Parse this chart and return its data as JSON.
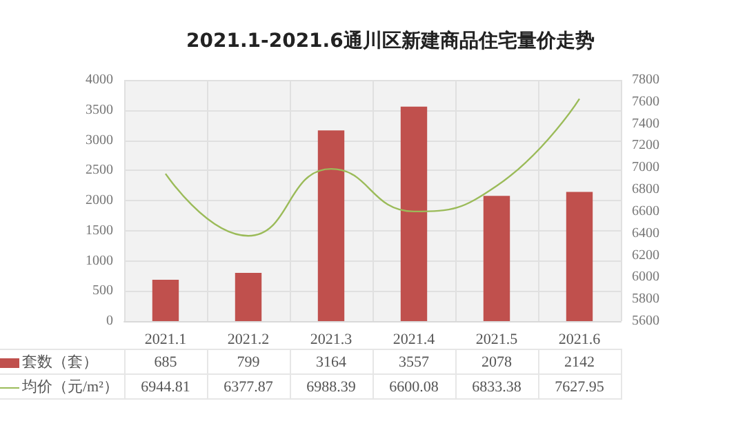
{
  "chart_data": {
    "type": "bar",
    "title": "2021.1-2021.6通川区新建商品住宅量价走势",
    "categories": [
      "2021.1",
      "2021.2",
      "2021.3",
      "2021.4",
      "2021.5",
      "2021.6"
    ],
    "series": [
      {
        "name": "套数（套）",
        "color": "#c0504d",
        "values": [
          685,
          799,
          3164,
          3557,
          2078,
          2142
        ]
      },
      {
        "name": "均价（元/m²）",
        "type": "line",
        "axis": "y2",
        "color": "#9bbb59",
        "values": [
          6944.81,
          6377.87,
          6988.39,
          6600.08,
          6833.38,
          7627.95
        ]
      }
    ],
    "ylim": [
      0,
      4000
    ],
    "yticks": [
      0,
      500,
      1000,
      1500,
      2000,
      2500,
      3000,
      3500,
      4000
    ],
    "y2lim": [
      5600,
      7800
    ],
    "y2ticks": [
      5600,
      5800,
      6000,
      6200,
      6400,
      6600,
      6800,
      7000,
      7200,
      7400,
      7600,
      7800
    ],
    "grid": true,
    "data_labels": true,
    "legend": "bottom",
    "marker": "none"
  }
}
